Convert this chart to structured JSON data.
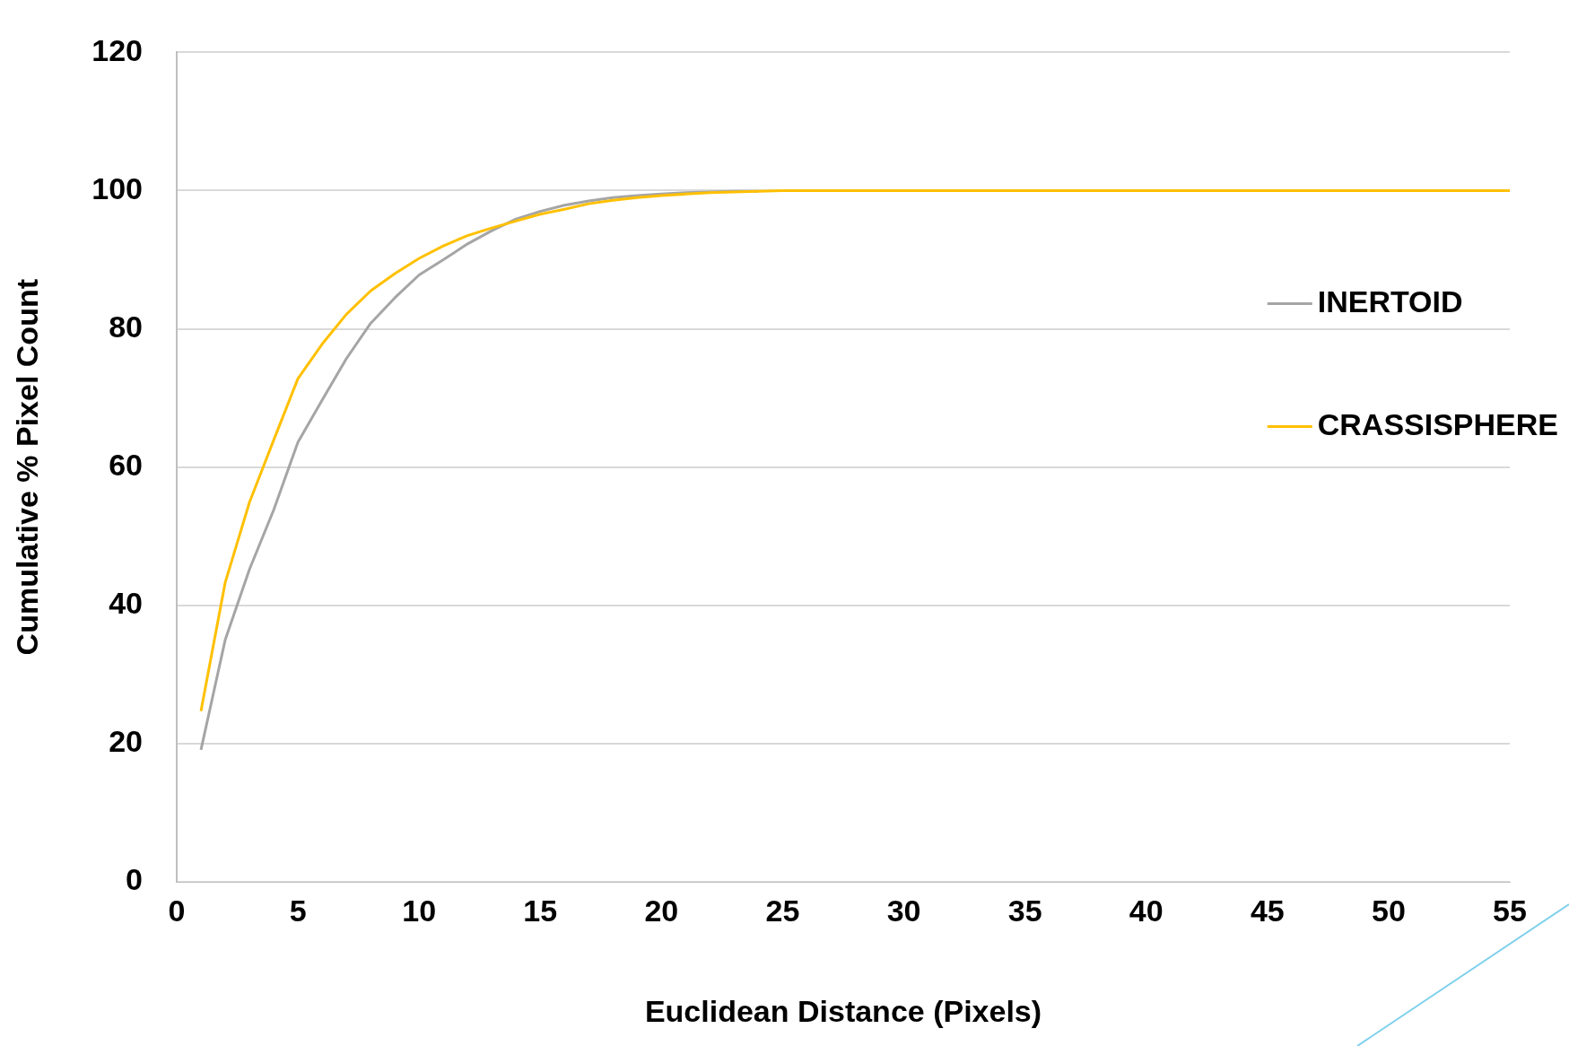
{
  "chart_data": {
    "type": "line",
    "xlabel": "Euclidean Distance (Pixels)",
    "ylabel": "Cumulative % Pixel Count",
    "x": [
      1,
      2,
      3,
      4,
      5,
      6,
      7,
      8,
      9,
      10,
      11,
      12,
      13,
      14,
      15,
      16,
      17,
      18,
      19,
      20,
      21,
      22,
      23,
      24,
      25,
      26,
      27,
      28,
      29,
      30,
      31,
      32,
      33,
      34,
      35,
      36,
      37,
      38,
      39,
      40,
      41,
      42,
      43,
      44,
      45,
      46,
      47,
      48,
      49,
      50,
      51,
      52,
      53,
      54,
      55
    ],
    "series": [
      {
        "name": "INERTOID",
        "color": "#a5a5a5",
        "values": [
          19.1,
          35.0,
          45.2,
          53.8,
          63.6,
          69.7,
          75.7,
          80.8,
          84.5,
          87.8,
          90.0,
          92.3,
          94.2,
          95.9,
          97.0,
          97.9,
          98.5,
          99.0,
          99.3,
          99.5,
          99.7,
          99.8,
          99.9,
          99.9,
          null,
          null,
          null,
          null,
          null,
          null,
          null,
          null,
          null,
          null,
          null,
          null,
          null,
          null,
          null,
          null,
          null,
          null,
          null,
          null,
          null,
          null,
          null,
          null,
          null,
          null,
          null,
          null,
          null,
          null,
          null
        ]
      },
      {
        "name": "CRASSISPHERE",
        "color": "#ffc000",
        "values": [
          24.7,
          43.3,
          54.9,
          63.9,
          72.8,
          77.8,
          82.1,
          85.5,
          88.0,
          90.2,
          92.0,
          93.5,
          94.6,
          95.6,
          96.6,
          97.3,
          98.1,
          98.6,
          99.0,
          99.3,
          99.5,
          99.7,
          99.8,
          99.9,
          100,
          100,
          100,
          100,
          100,
          100,
          100,
          100,
          100,
          100,
          100,
          100,
          100,
          100,
          100,
          100,
          100,
          100,
          100,
          100,
          100,
          100,
          100,
          100,
          100,
          100,
          100,
          100,
          100,
          100,
          100
        ]
      }
    ],
    "xlim": [
      0,
      55
    ],
    "xticks": [
      0,
      5,
      10,
      15,
      20,
      25,
      30,
      35,
      40,
      45,
      50,
      55
    ],
    "ylim": [
      0,
      120
    ],
    "yticks": [
      0,
      20,
      40,
      60,
      80,
      100,
      120
    ],
    "grid": "y",
    "legend": "right",
    "marker": "none",
    "line_style": "solid"
  }
}
